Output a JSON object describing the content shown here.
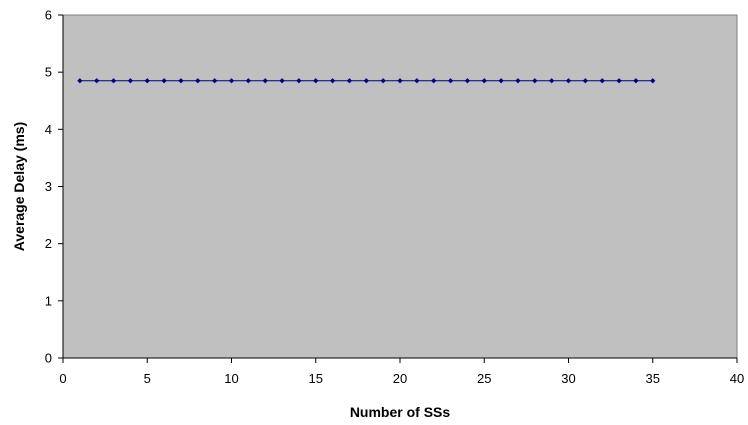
{
  "chart_data": {
    "type": "line",
    "title": "",
    "xlabel": "Number of SSs",
    "ylabel": "Average Delay (ms)",
    "xlim": [
      0,
      40
    ],
    "ylim": [
      0,
      6
    ],
    "x_ticks": [
      0,
      5,
      10,
      15,
      20,
      25,
      30,
      35,
      40
    ],
    "y_ticks": [
      0,
      1,
      2,
      3,
      4,
      5,
      6
    ],
    "grid": false,
    "legend": "none",
    "plot_background": "#c0c0c0",
    "series": [
      {
        "color": "#000080",
        "marker": "diamond",
        "x": [
          1,
          2,
          3,
          4,
          5,
          6,
          7,
          8,
          9,
          10,
          11,
          12,
          13,
          14,
          15,
          16,
          17,
          18,
          19,
          20,
          21,
          22,
          23,
          24,
          25,
          26,
          27,
          28,
          29,
          30,
          31,
          32,
          33,
          34,
          35
        ],
        "y": [
          4.85,
          4.85,
          4.85,
          4.85,
          4.85,
          4.85,
          4.85,
          4.85,
          4.85,
          4.85,
          4.85,
          4.85,
          4.85,
          4.85,
          4.85,
          4.85,
          4.85,
          4.85,
          4.85,
          4.85,
          4.85,
          4.85,
          4.85,
          4.85,
          4.85,
          4.85,
          4.85,
          4.85,
          4.85,
          4.85,
          4.85,
          4.85,
          4.85,
          4.85,
          4.85
        ]
      }
    ]
  }
}
